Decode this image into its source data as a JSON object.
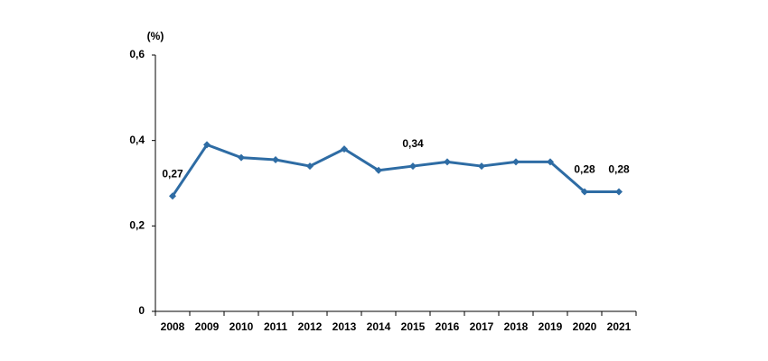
{
  "chart_data": {
    "type": "line",
    "y_label": "(%)",
    "categories": [
      "2008",
      "2009",
      "2010",
      "2011",
      "2012",
      "2013",
      "2014",
      "2015",
      "2016",
      "2017",
      "2018",
      "2019",
      "2020",
      "2021"
    ],
    "series": [
      {
        "color": "#2e6ca4",
        "values": [
          0.27,
          0.39,
          0.36,
          0.355,
          0.34,
          0.38,
          0.33,
          0.34,
          0.35,
          0.34,
          0.35,
          0.35,
          0.28,
          0.28
        ],
        "value_labels": [
          "0,27",
          null,
          null,
          null,
          null,
          null,
          null,
          "0,34",
          null,
          null,
          null,
          null,
          "0,28",
          "0,28"
        ]
      }
    ],
    "ylim": [
      0,
      0.6
    ],
    "yticks": [
      0,
      {
        "value": 0.2,
        "label": "0,2"
      },
      {
        "value": 0.4,
        "label": "0,4"
      },
      {
        "value": 0.6,
        "label": "0,6"
      }
    ]
  }
}
